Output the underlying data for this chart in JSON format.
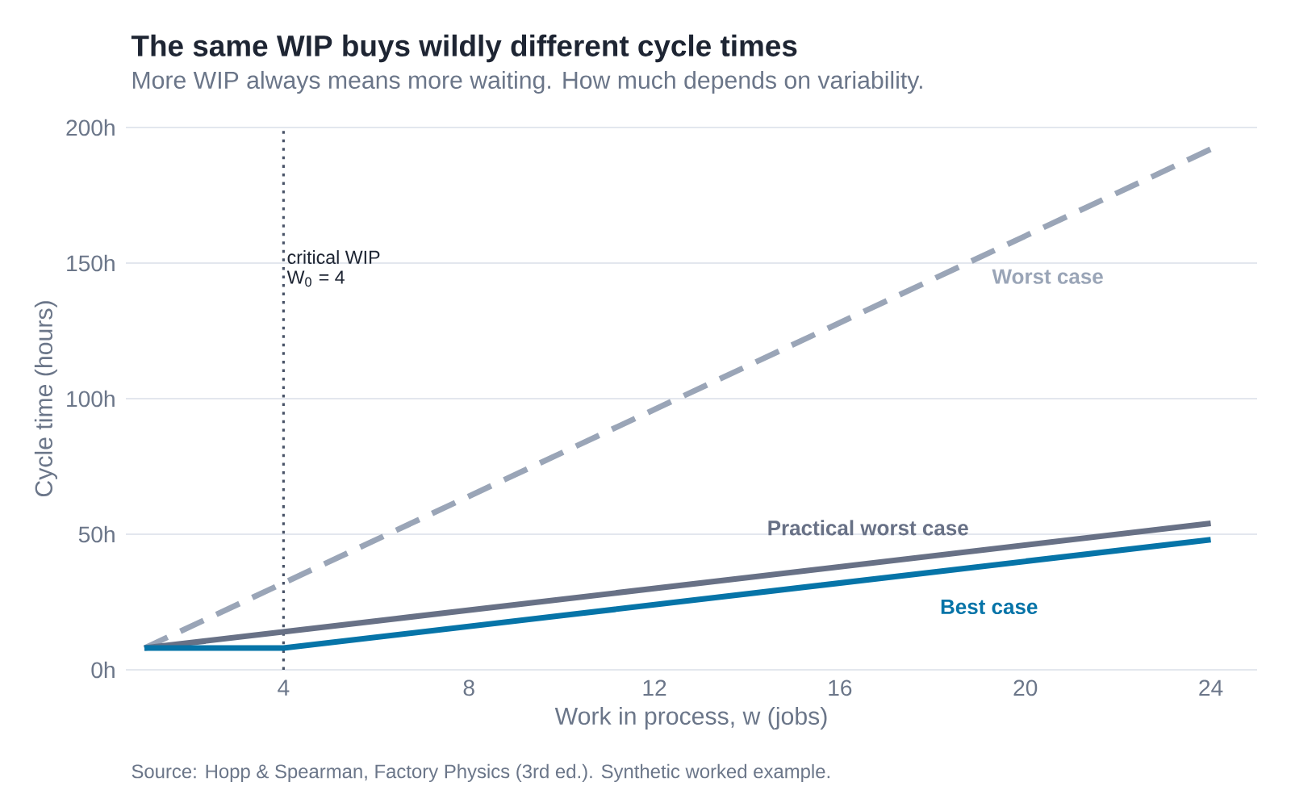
{
  "chart_data": {
    "type": "line",
    "title": "The same WIP buys wildly different cycle times",
    "subtitle": "More WIP always means more waiting. How much depends on variability.",
    "xlabel": "Work in process, w (jobs)",
    "ylabel": "Cycle time (hours)",
    "series": [
      {
        "name": "Worst case",
        "color": "#9aa5b7",
        "line_style": "dashed",
        "x": [
          1,
          24
        ],
        "values": [
          8,
          192
        ]
      },
      {
        "name": "Practical worst case",
        "color": "#687186",
        "line_style": "solid",
        "x": [
          1,
          24
        ],
        "values": [
          8,
          54
        ]
      },
      {
        "name": "Best case",
        "color": "#0674a8",
        "line_style": "solid",
        "x": [
          1,
          4,
          24
        ],
        "values": [
          8,
          8,
          48
        ]
      }
    ],
    "xlim": [
      0.6,
      25
    ],
    "ylim": [
      0,
      200
    ],
    "xticks": [
      4,
      8,
      12,
      16,
      20,
      24
    ],
    "yticks": [
      {
        "value": 0,
        "label": "0h"
      },
      {
        "value": 50,
        "label": "50h"
      },
      {
        "value": 100,
        "label": "100h"
      },
      {
        "value": 150,
        "label": "150h"
      },
      {
        "value": 200,
        "label": "200h"
      }
    ],
    "grid": "y",
    "marker": "none",
    "ref_lines": [
      {
        "axis": "x",
        "value": 4,
        "label": "critical WIP",
        "color": "#4a5468",
        "line_style": "dotted"
      }
    ],
    "annotations": [
      "W$_{0}$ = 4",
      "Source: Hopp & Spearman, Factory Physics (3rd ed.). Synthetic worked example."
    ]
  }
}
